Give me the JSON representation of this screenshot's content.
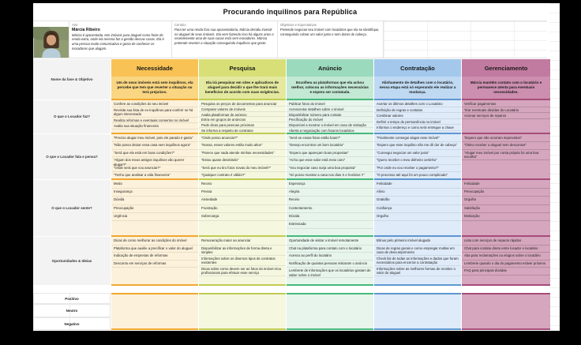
{
  "title": "Procurando inquilinos para República",
  "persona": {
    "ator_label": "Ator",
    "name": "Márcia Ribeiro",
    "bio": "Márcia é aposentada, tem imóveis para aluguel como fonte de renda extra, onde ela mesma faz a gestão dessas casas. Ela é uma pessoa muito comunicativa e gosta de conhecer os moradores que alugam.",
    "cenario_label": "Cenário",
    "cenario": "Para ter uma renda fora sua aposentadoria, Márcia decidiu investir no aluguel de seus imóveis. Ela vem fazendo isso há alguns anos e recentemente uma de suas casas está sem moradores. Márcia pretende reverter a situação conseguindo inquilinos que goste.",
    "objetivos_label": "Objetivos e Expectativas",
    "objetivos": "Pretende negociar seu imóvel com locatários que ela se identifique, conseguindo cobrar um valor justo e sem dores de cabeça."
  },
  "row_labels": {
    "fase": "Nome da fase & Objetivo",
    "faz": "O que o Locador faz?",
    "fala": "O que o Locador fala e pensa?",
    "sente": "O que o Locador sente?",
    "oportunidades": "Oportunidades & Ideias",
    "positivo": "Positivo",
    "neutro": "Neutro",
    "negativo": "Negativo"
  },
  "phases": [
    {
      "name": "Necessidade",
      "colors": {
        "header": "#F8C255",
        "desc": "#FAD682",
        "body": "#FCF1DA",
        "border": "#F0A830"
      },
      "objective": "Um de seus imóveis está sem inquilinos, ela percebe que tem que reverter a situação ou terá prejuízos.",
      "faz": [
        "Confere as condições do seu imóvel",
        "Revisita sua lista de ex-inquilinos para conferir se há algum interessado",
        "Realiza reformas e eventuais consertos no imóvel",
        "Avalia sua situação financeira"
      ],
      "fala": [
        "“Preciso alugar meu imóvel, pois ele parado é gasto”",
        "“Não posso deixar essa casa sem inquilinos agora”",
        "“Será que ela está em boas condições?”",
        "“Algum dos meus antigos inquilinos vão querer alugar?”",
        "“Onde será que vou anunciar?”",
        "“Tenho que analisar a vida financeira”"
      ],
      "sente": [
        "Medo",
        "Insegurança",
        "Dúvida",
        "Preocupação",
        "Urgência"
      ],
      "oportunidades": [
        "Dicas de como melhorar as condições do imóvel",
        "Plataforma que auxilie a precificar o valor do aluguel",
        "Indicação de empresas de reformas",
        "Desconto em serviços de reformas"
      ]
    },
    {
      "name": "Pesquisa",
      "colors": {
        "header": "#D8DF77",
        "desc": "#E4E99F",
        "body": "#F5F7DF",
        "border": "#C0CC52"
      },
      "objective": "Ela irá pesquisar em sites e aplicativos de aluguel para decidir o que lhe trará mais benefícios de acordo com suas exigências.",
      "faz": [
        "Pesquisa os preços de documentos para anunciar",
        "Comparar valores de imóveis",
        "Avalia plataformas de anúncio",
        "Entra em grupos de anúncios",
        "Pede dicas para pessoas próximas",
        "Se informa a respeito de contratos"
      ],
      "fala": [
        "“Onde posso anunciar?”",
        "“Nossa, esses valores estão muito altos”",
        "“Parece que nada atende minhas necessidades”",
        "“Estou quase desistindo”",
        "“Será que eu tiro fotos novas do meu imóvel?”",
        "“Qualquer contrato é válido?”"
      ],
      "sente": [
        "Receio",
        "Pressa",
        "Ansiedade",
        "Frustração",
        "Sobrecarga"
      ],
      "oportunidades": [
        "Remuneração maior ao anunciar",
        "Disponibilizar as informações de forma direta e simples",
        "Informações sobre os diversos tipos de contratos existentes",
        "Dicas sobre como devem ser as fotos do imóvel e/ou profissionais para efetuar esse serviço"
      ]
    },
    {
      "name": "Anúncio",
      "colors": {
        "header": "#9CDABD",
        "desc": "#C3E8D4",
        "body": "#E8F5EC",
        "border": "#45B97C"
      },
      "objective": "Escolheu as plataformas que ela achou melhor, colocou as informações necessárias e espera ser contatada.",
      "faz": [
        "Publicar fotos do imóvel",
        "Acrescentar detalhes sobre o imóvel",
        "Disponibilizar número para contato",
        "Precificação do imóvel",
        "Disponível a mostrar o imóvel em caso de visitação",
        "Aberta a negociação com futuros locatários"
      ],
      "fala": [
        "“Será se essas fotos estão boas?”",
        "“Desejo encontrar um bom locatário”",
        "“Espero que apareçam boas propostas”",
        "“Acho que esse valor está meio caro”",
        "“Vou negociar caso surja uma boa proposta”",
        "“Só posso mostrar a casa nos dias X e horários Y”"
      ],
      "sente": [
        "Esperança",
        "Alegria",
        "Receio",
        "Contentamento",
        "Dúvida",
        "Estressada"
      ],
      "oportunidades": [
        "Oportunidade de visitar o imóvel remotamente",
        "Chat na plataforma para contato com o locatário",
        "Acesso ao perfil do locatário",
        "Notificação de quantas pessoas visitaram o anúncio",
        "Lembrete de informações que os locatários gostam de saber sobre o imóvel"
      ]
    },
    {
      "name": "Contratação",
      "colors": {
        "header": "#A3C8EC",
        "desc": "#BFD9F2",
        "body": "#DFEBF9",
        "border": "#5E97D0"
      },
      "objective": "Alinhamento de detalhes com o locatário, nessa etapa está só esperando ele realizar a mudança.",
      "faz": [
        "Acertar os últimos detalhes com o Locatário",
        "Definição de regras e contatos",
        "Combinar valores",
        "Definir o tempo de permanência no imóvel",
        "Informar o endereço e como será entregue a chave"
      ],
      "fala": [
        "“Finalmente consegui alugar esse imóvel”",
        "“Espero que esse inquilino não me dê dor de cabeça”",
        "“Consegui negociar um valor justo”",
        "“Quero receber o meu dinheiro certinho”",
        "“Por onde eu vou receber o pagamento?”",
        "“O processo até aqui foi um pouco complicado”"
      ],
      "sente": [
        "Felicidade",
        "Alívio",
        "Gratidão",
        "Confiança",
        "Orgulho"
      ],
      "oportunidades": [
        "Bônus pelo primeiro imóvel alugado",
        "Dicas de regras gerais e como empregar multas em caso de descumprimento",
        "Check list de todas as informações e dados que foram necessários para encerrar a contratação",
        "Informações sobre as melhores formas de receber o valor do aluguel"
      ]
    },
    {
      "name": "Gerenciamento",
      "colors": {
        "header": "#C27BA0",
        "desc": "#CC8FAF",
        "body": "#D5A6BD",
        "border": "#A64D79"
      },
      "objective": "Márcia mantém contato com o locatário e permanece atenta para eventuais necessidades.",
      "faz": [
        "Verificar pagamentos",
        "Tirar eventuais dúvidas do Locatário",
        "Acionar serviços de reparos"
      ],
      "fala": [
        "“Espero que não ocorram imprevistos”",
        "“Ótimo receber o aluguel sem descontos”",
        "“Alugar meu imóvel por conta própria foi uma boa escolha”"
      ],
      "sente": [
        "Felicidade",
        "Preocupação",
        "Orgulho",
        "Satisfação",
        "Motivação"
      ],
      "oportunidades": [
        "Lista com serviços de reparos rápidos",
        "Chat para contato direto entre locador e locatário",
        "Aba para reclamações ou elogios sobre o locatário",
        "Lembrete quando o dia do pagamento estiver próximo",
        "FAQ para principais dúvidas"
      ]
    }
  ]
}
